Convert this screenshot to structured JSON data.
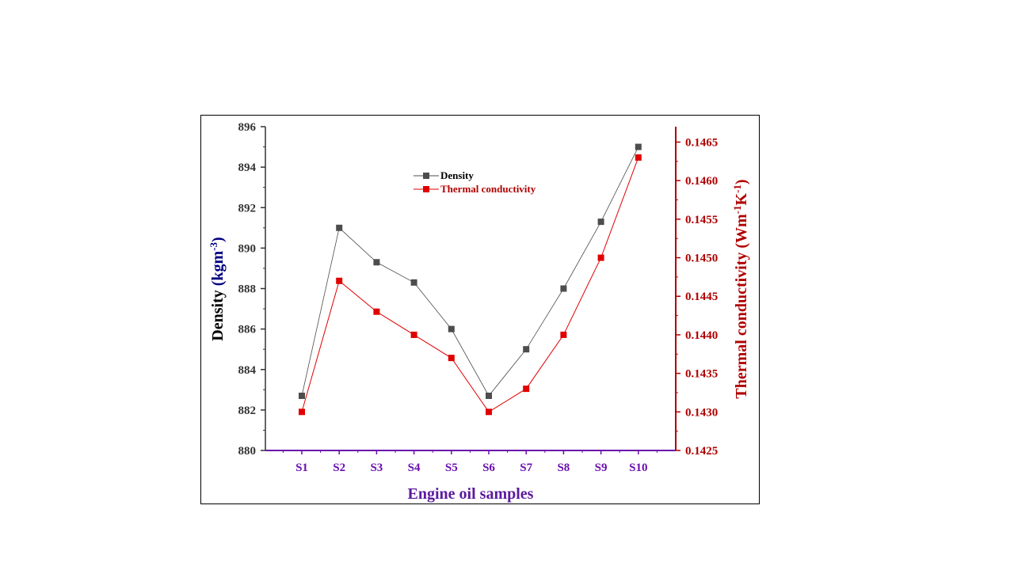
{
  "chart_data": {
    "type": "line",
    "categories": [
      "S1",
      "S2",
      "S3",
      "S4",
      "S5",
      "S6",
      "S7",
      "S8",
      "S9",
      "S10"
    ],
    "series": [
      {
        "name": "Density",
        "axis": "left",
        "color": "#4d4d4d",
        "values": [
          882.7,
          891.0,
          889.3,
          888.3,
          886.0,
          882.7,
          885.0,
          888.0,
          891.3,
          895.0
        ]
      },
      {
        "name": "Thermal conductivity",
        "axis": "right",
        "color": "#e00000",
        "values": [
          0.143,
          0.1447,
          0.1443,
          0.144,
          0.1437,
          0.143,
          0.1433,
          0.144,
          0.145,
          0.1463
        ]
      }
    ],
    "xlabel": "Engine oil samples",
    "ylabel_left": {
      "main": "Density (kgm",
      "sup": "-3",
      "close": ")"
    },
    "ylabel_right": {
      "main": "Thermal conductivity (Wm",
      "sup1": "-1",
      "mid": "K",
      "sup2": "-1",
      "close": ")"
    },
    "ylim_left": [
      880,
      896
    ],
    "yticks_left": [
      "880",
      "882",
      "884",
      "886",
      "888",
      "890",
      "892",
      "894",
      "896"
    ],
    "ylim_right": [
      0.1425,
      0.1467
    ],
    "yticks_right": [
      "0.1425",
      "0.1430",
      "0.1435",
      "0.1440",
      "0.1445",
      "0.1450",
      "0.1455",
      "0.1460",
      "0.1465"
    ],
    "legend_position": "top-center",
    "grid": false,
    "colors": {
      "left_axis": "#333333",
      "right_axis": "#b00000",
      "x_axis": "#6a0dad",
      "x_title": "#5b1a9e",
      "left_title_unit": "#000080"
    }
  }
}
